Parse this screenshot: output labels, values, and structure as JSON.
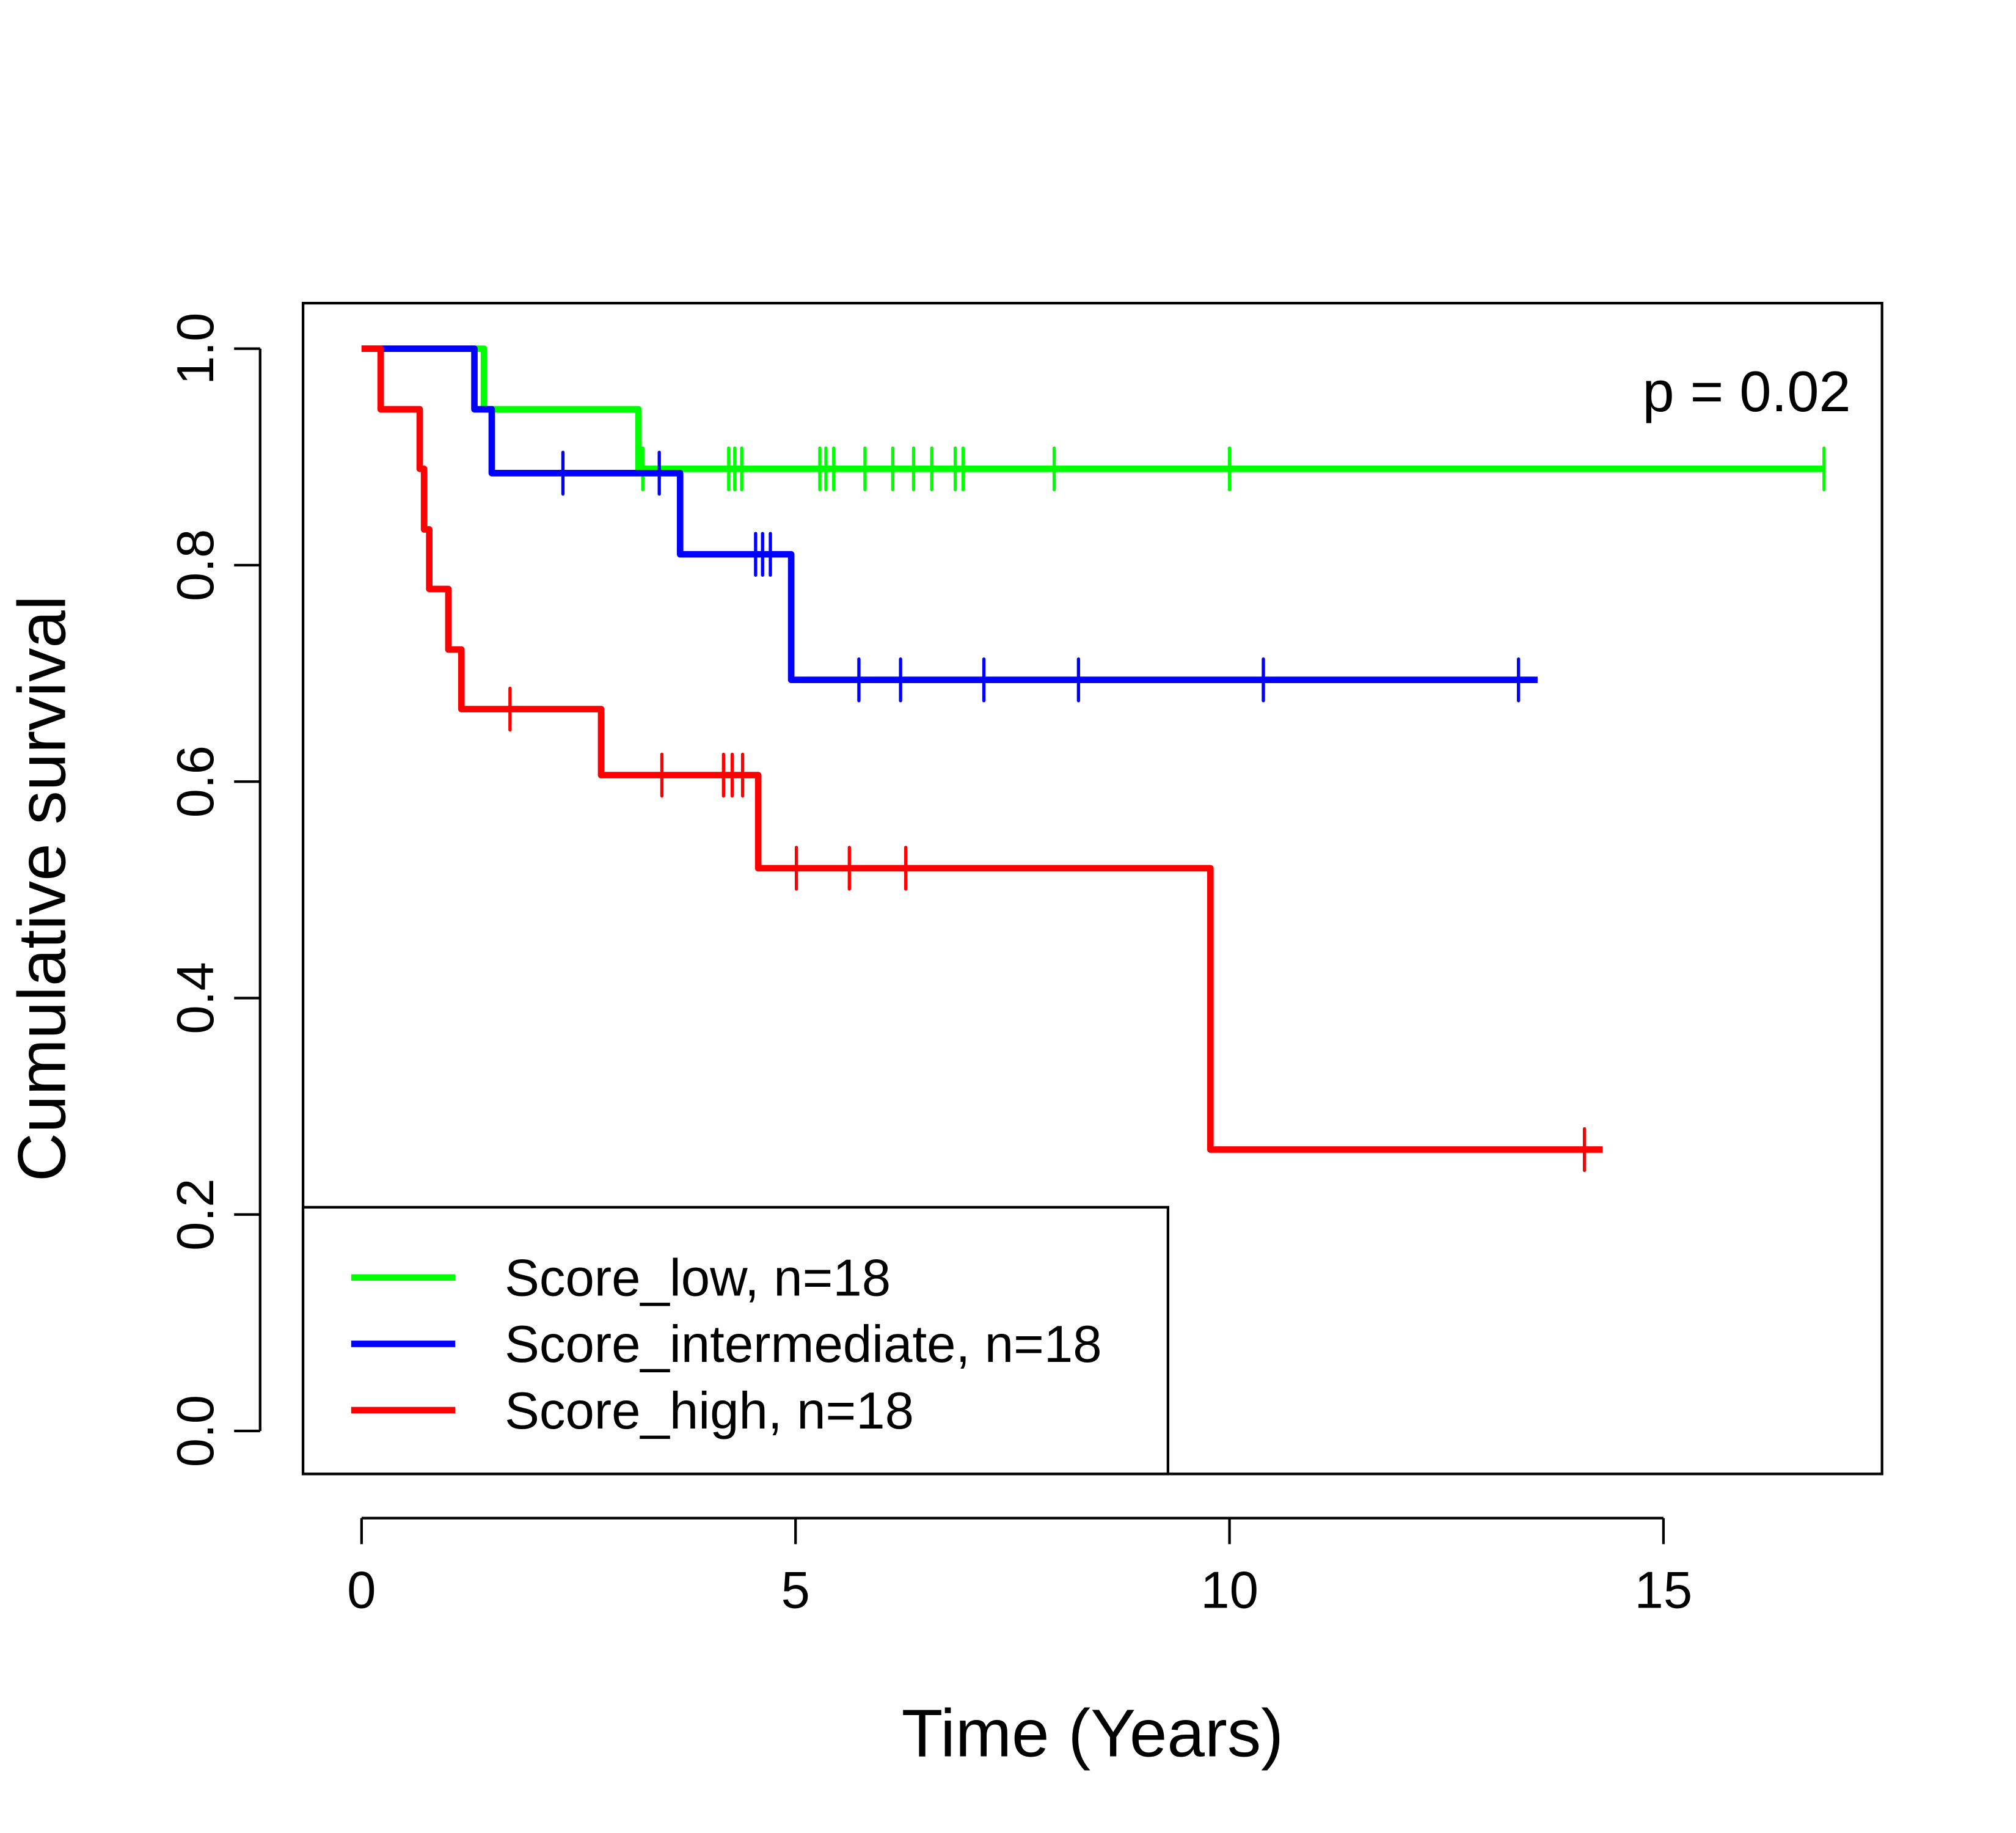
{
  "chart_data": {
    "type": "line",
    "subtype": "kaplan-meier step",
    "xlabel": "Time (Years)",
    "ylabel": "Cumulative survival",
    "xlim": [
      -0.67,
      17.5
    ],
    "ylim": [
      -0.04,
      1.04
    ],
    "xticks": [
      0,
      5,
      10,
      15
    ],
    "xtick_labels": [
      "0",
      "5",
      "10",
      "15"
    ],
    "yticks": [
      0,
      0.2,
      0.4,
      0.6,
      0.8,
      1.0
    ],
    "ytick_labels": [
      "0.0",
      "0.2",
      "0.4",
      "0.6",
      "0.8",
      "1.0"
    ],
    "grid": false,
    "annotation": "p = 0.02",
    "legend_position": "bottom-left",
    "series": [
      {
        "name": "Score_low, n=18",
        "color": "#00ff00",
        "steps": [
          [
            0,
            1.0
          ],
          [
            1.41,
            0.944
          ],
          [
            3.19,
            0.889
          ]
        ],
        "end": 16.85,
        "censored": [
          3.24,
          4.23,
          4.3,
          4.38,
          5.28,
          5.35,
          5.44,
          5.8,
          6.12,
          6.36,
          6.57,
          6.84,
          6.93,
          7.98,
          10.0,
          16.85
        ]
      },
      {
        "name": "Score_intermediate, n=18",
        "color": "#0000ff",
        "steps": [
          [
            0,
            1.0
          ],
          [
            1.3,
            0.944
          ],
          [
            1.5,
            0.885
          ],
          [
            3.67,
            0.81
          ],
          [
            4.95,
            0.694
          ]
        ],
        "end": 13.55,
        "censored": [
          2.32,
          3.43,
          4.54,
          4.62,
          4.71,
          5.73,
          6.21,
          7.17,
          8.26,
          10.39,
          13.33
        ]
      },
      {
        "name": "Score_high, n=18",
        "color": "#ff0000",
        "steps": [
          [
            0,
            1.0
          ],
          [
            0.22,
            0.944
          ],
          [
            0.67,
            0.889
          ],
          [
            0.72,
            0.833
          ],
          [
            0.78,
            0.778
          ],
          [
            1.0,
            0.722
          ],
          [
            1.15,
            0.667
          ],
          [
            2.76,
            0.606
          ],
          [
            4.57,
            0.52
          ],
          [
            9.78,
            0.26
          ]
        ],
        "end": 14.3,
        "censored": [
          1.71,
          3.46,
          4.17,
          4.27,
          4.39,
          5.01,
          5.62,
          6.27,
          14.09
        ]
      }
    ]
  }
}
